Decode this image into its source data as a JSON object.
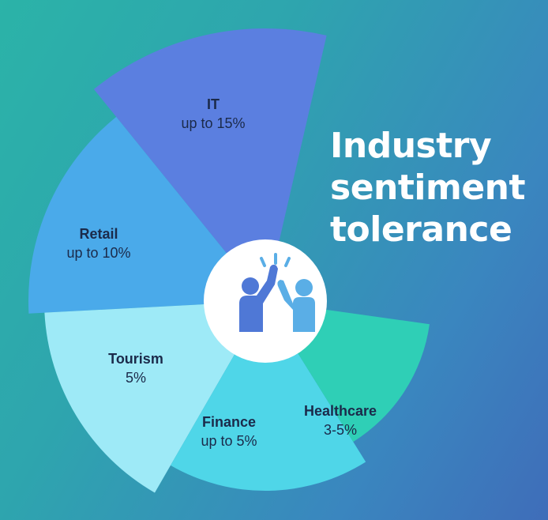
{
  "title_lines": [
    "Industry",
    "sentiment",
    "tolerance"
  ],
  "colors": {
    "IT": "#5b7fe0",
    "Retail": "#4aaaea",
    "Tourism": "#9eeaf7",
    "Finance": "#4fd6e8",
    "Healthcare": "#2fcfb6",
    "icon_dark": "#4f78d6",
    "icon_light": "#5aaee6"
  },
  "chart_data": {
    "type": "pie",
    "title": "Industry sentiment tolerance",
    "segments": [
      {
        "name": "IT",
        "value_label": "up to 15%",
        "value": 15
      },
      {
        "name": "Retail",
        "value_label": "up to 10%",
        "value": 10
      },
      {
        "name": "Tourism",
        "value_label": "5%",
        "value": 5
      },
      {
        "name": "Finance",
        "value_label": "up to 5%",
        "value": 5
      },
      {
        "name": "Healthcare",
        "value_label": "3-5%",
        "value": 5
      }
    ]
  }
}
